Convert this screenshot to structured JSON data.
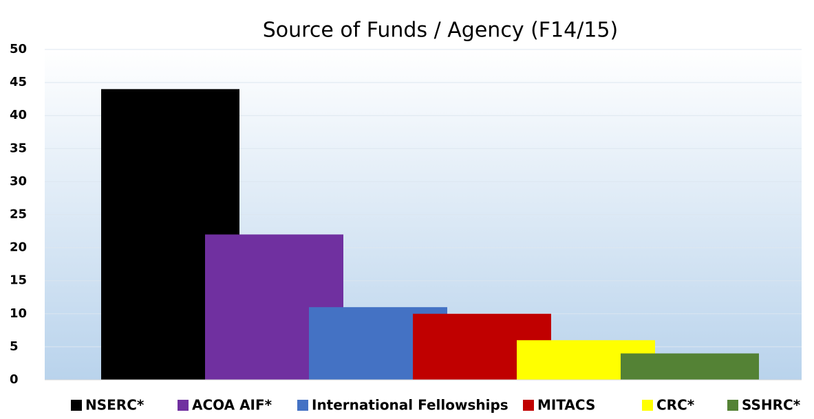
{
  "chart_data": {
    "type": "bar",
    "title": "Source of Funds / Agency (F14/15)",
    "series": [
      {
        "name": "NSERC*",
        "color": "#000000",
        "values": [
          44
        ]
      },
      {
        "name": "ACOA AIF*",
        "color": "#7030a0",
        "values": [
          22
        ]
      },
      {
        "name": "International Fellowships",
        "color": "#4472c4",
        "values": [
          11
        ]
      },
      {
        "name": "MITACS",
        "color": "#c00000",
        "values": [
          10
        ]
      },
      {
        "name": "CRC*",
        "color": "#ffff00",
        "values": [
          6
        ]
      },
      {
        "name": "SSHRC*",
        "color": "#548235",
        "values": [
          4
        ]
      }
    ],
    "ylim": [
      0,
      50
    ],
    "yticks": [
      0,
      5,
      10,
      15,
      20,
      25,
      30,
      35,
      40,
      45,
      50
    ],
    "grid": true,
    "legend": "bottom"
  }
}
